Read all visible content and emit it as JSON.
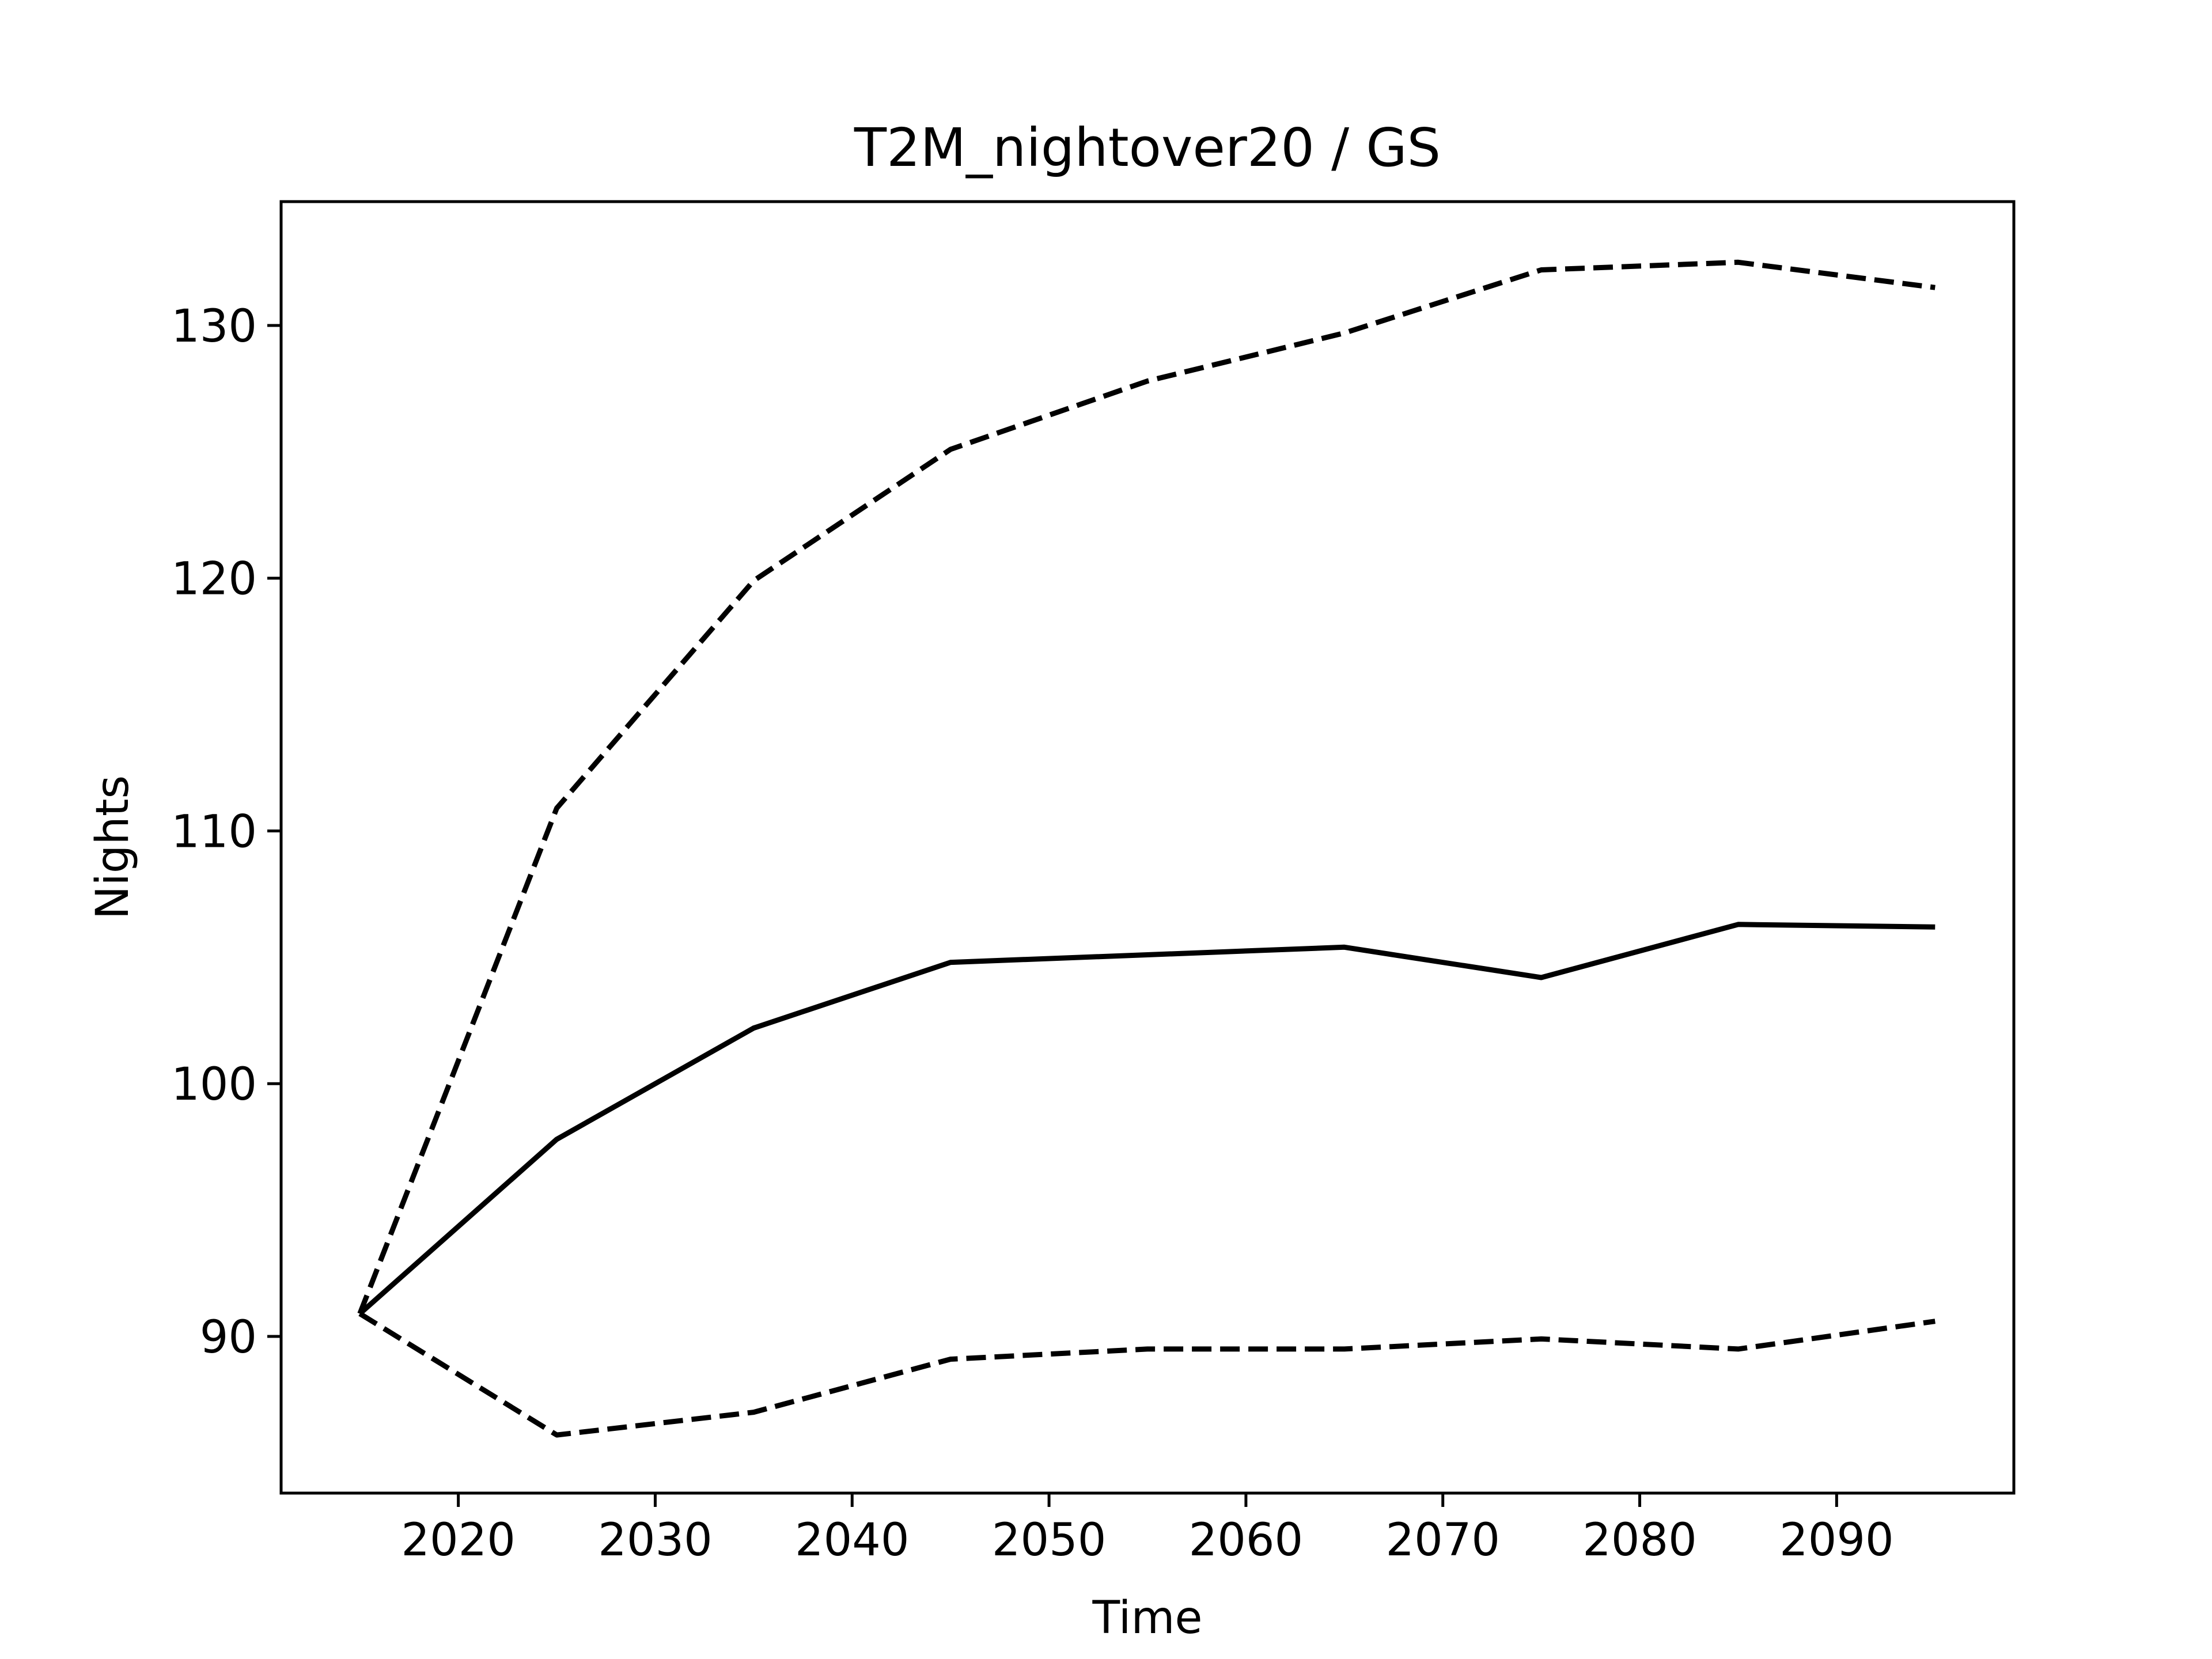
{
  "chart_data": {
    "type": "line",
    "title": "T2M_nightover20 / GS",
    "xlabel": "Time",
    "ylabel": "Nights",
    "x": [
      2015,
      2025,
      2035,
      2045,
      2055,
      2065,
      2075,
      2085,
      2095
    ],
    "series": [
      {
        "style": "solid",
        "values": [
          90.9,
          97.8,
          102.2,
          104.8,
          105.1,
          105.4,
          104.2,
          106.3,
          106.2
        ]
      },
      {
        "style": "dashed",
        "values": [
          90.9,
          110.9,
          119.9,
          125.1,
          127.8,
          129.7,
          132.2,
          132.5,
          131.5
        ]
      },
      {
        "style": "dashed",
        "values": [
          90.9,
          86.1,
          87.0,
          89.1,
          89.5,
          89.5,
          89.9,
          89.5,
          90.6
        ]
      }
    ],
    "xticks": [
      2020,
      2030,
      2040,
      2050,
      2060,
      2070,
      2080,
      2090
    ],
    "yticks": [
      90,
      100,
      110,
      120,
      130
    ],
    "xlim": [
      2011,
      2099
    ],
    "ylim": [
      83.8,
      134.9
    ],
    "grid": false,
    "line_color": "#000000"
  }
}
